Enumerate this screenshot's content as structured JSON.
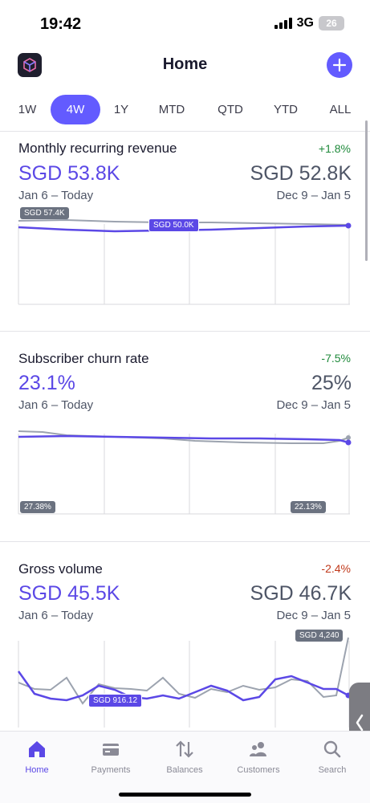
{
  "status_bar": {
    "time": "19:42",
    "network": "3G",
    "battery": "26"
  },
  "header": {
    "title": "Home",
    "logo_icon": "cube-logo-icon",
    "add_icon": "plus-icon"
  },
  "tabs": [
    {
      "label": "1W",
      "active": false
    },
    {
      "label": "4W",
      "active": true
    },
    {
      "label": "1Y",
      "active": false
    },
    {
      "label": "MTD",
      "active": false
    },
    {
      "label": "QTD",
      "active": false
    },
    {
      "label": "YTD",
      "active": false
    },
    {
      "label": "ALL",
      "active": false
    }
  ],
  "metrics": [
    {
      "title": "Monthly recurring revenue",
      "change": "+1.8%",
      "current_value": "SGD 53.8K",
      "previous_value": "SGD 52.8K",
      "current_range": "Jan 6 – Today",
      "previous_range": "Dec 9 – Jan 5",
      "label_max": "SGD 57.4K",
      "label_min": "SGD 50.0K"
    },
    {
      "title": "Subscriber churn rate",
      "change": "-7.5%",
      "current_value": "23.1%",
      "previous_value": "25%",
      "current_range": "Jan 6 – Today",
      "previous_range": "Dec 9 – Jan 5",
      "label_start": "27.38%",
      "label_end": "22.13%"
    },
    {
      "title": "Gross volume",
      "change": "-2.4%",
      "current_value": "SGD 45.5K",
      "previous_value": "SGD 46.7K",
      "current_range": "Jan 6 – Today",
      "previous_range": "Dec 9 – Jan 5",
      "label_max": "SGD 4,240",
      "label_min": "SGD 916.12"
    }
  ],
  "bottom_nav": [
    {
      "label": "Home",
      "icon": "home-icon",
      "active": true
    },
    {
      "label": "Payments",
      "icon": "payments-icon",
      "active": false
    },
    {
      "label": "Balances",
      "icon": "balances-icon",
      "active": false
    },
    {
      "label": "Customers",
      "icon": "customers-icon",
      "active": false
    },
    {
      "label": "Search",
      "icon": "search-icon",
      "active": false
    }
  ],
  "colors": {
    "accent": "#635bff",
    "current_series": "#5b48e6",
    "previous_series": "#9ca3af",
    "positive": "#1f8a3b",
    "negative": "#c0391b"
  }
}
